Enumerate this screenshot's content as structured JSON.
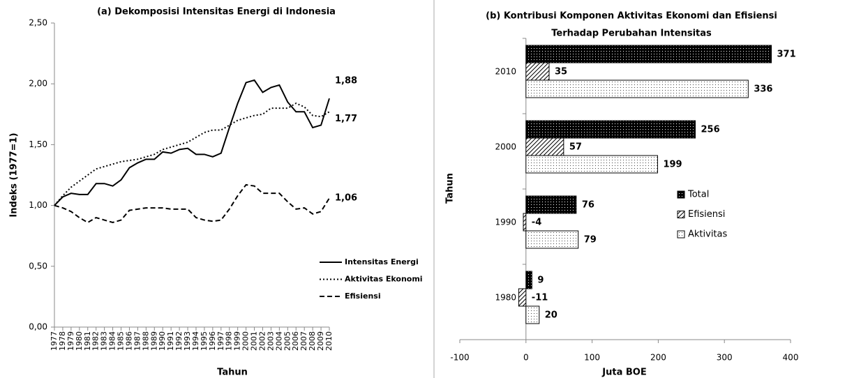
{
  "chart_data": [
    {
      "type": "line",
      "title": "(a) Dekomposisi  Intensitas Energi di Indonesia",
      "x_label": "Tahun",
      "y_label": "Indeks (1977=1)",
      "categories": [
        "1977",
        "1978",
        "1979",
        "1980",
        "1981",
        "1982",
        "1983",
        "1984",
        "1985",
        "1986",
        "1987",
        "1988",
        "1989",
        "1990",
        "1991",
        "1992",
        "1993",
        "1994",
        "1995",
        "1996",
        "1997",
        "1998",
        "1999",
        "2000",
        "2001",
        "2002",
        "2003",
        "2004",
        "2005",
        "2006",
        "2007",
        "2008",
        "2009",
        "2010"
      ],
      "ylim": [
        0,
        2.5
      ],
      "yticks": [
        {
          "value": 0,
          "label": "0,00"
        },
        {
          "value": 0.5,
          "label": "0,50"
        },
        {
          "value": 1,
          "label": "1,00"
        },
        {
          "value": 1.5,
          "label": "1,50"
        },
        {
          "value": 2,
          "label": "2,00"
        },
        {
          "value": 2.5,
          "label": "2,50"
        }
      ],
      "grid": false,
      "legend": "lower-right",
      "series": [
        {
          "name": "Intensitas Energi",
          "color": "#000000",
          "dash": "solid",
          "values": [
            1.0,
            1.07,
            1.1,
            1.09,
            1.09,
            1.18,
            1.18,
            1.16,
            1.21,
            1.31,
            1.35,
            1.38,
            1.38,
            1.44,
            1.43,
            1.46,
            1.47,
            1.42,
            1.42,
            1.4,
            1.43,
            1.64,
            1.84,
            2.01,
            2.03,
            1.93,
            1.97,
            1.99,
            1.85,
            1.77,
            1.77,
            1.64,
            1.66,
            1.88
          ],
          "value_labels": [
            null,
            null,
            null,
            null,
            null,
            null,
            null,
            null,
            null,
            null,
            null,
            null,
            null,
            null,
            null,
            null,
            null,
            null,
            null,
            null,
            null,
            null,
            null,
            null,
            null,
            null,
            null,
            null,
            null,
            null,
            null,
            null,
            null,
            "1,88"
          ]
        },
        {
          "name": "Aktivitas Ekonomi",
          "color": "#000000",
          "dash": "dotted",
          "values": [
            1.0,
            1.08,
            1.15,
            1.2,
            1.25,
            1.3,
            1.32,
            1.34,
            1.36,
            1.37,
            1.38,
            1.4,
            1.42,
            1.46,
            1.48,
            1.5,
            1.52,
            1.56,
            1.6,
            1.62,
            1.62,
            1.66,
            1.7,
            1.72,
            1.74,
            1.75,
            1.8,
            1.8,
            1.8,
            1.84,
            1.81,
            1.74,
            1.73,
            1.77
          ],
          "value_labels": [
            null,
            null,
            null,
            null,
            null,
            null,
            null,
            null,
            null,
            null,
            null,
            null,
            null,
            null,
            null,
            null,
            null,
            null,
            null,
            null,
            null,
            null,
            null,
            null,
            null,
            null,
            null,
            null,
            null,
            null,
            null,
            null,
            null,
            "1,77"
          ]
        },
        {
          "name": "Efisiensi",
          "color": "#000000",
          "dash": "dashed",
          "values": [
            1.0,
            0.98,
            0.95,
            0.9,
            0.86,
            0.9,
            0.88,
            0.86,
            0.88,
            0.96,
            0.97,
            0.98,
            0.98,
            0.98,
            0.97,
            0.97,
            0.97,
            0.9,
            0.88,
            0.87,
            0.88,
            0.97,
            1.08,
            1.17,
            1.16,
            1.1,
            1.1,
            1.1,
            1.03,
            0.97,
            0.98,
            0.93,
            0.95,
            1.06
          ],
          "value_labels": [
            null,
            null,
            null,
            null,
            null,
            null,
            null,
            null,
            null,
            null,
            null,
            null,
            null,
            null,
            null,
            null,
            null,
            null,
            null,
            null,
            null,
            null,
            null,
            null,
            null,
            null,
            null,
            null,
            null,
            null,
            null,
            null,
            null,
            "1,06"
          ]
        }
      ]
    },
    {
      "type": "bar",
      "orientation": "horizontal",
      "title": [
        "(b) Kontribusi Komponen Aktivitas Ekonomi dan Efisiensi",
        "Terhadap Perubahan Intensitas"
      ],
      "x_label": "Juta BOE",
      "y_label": "Tahun",
      "categories": [
        "1980",
        "1990",
        "2000",
        "2010"
      ],
      "xlim": [
        -100,
        400
      ],
      "xticks": [
        -100,
        0,
        100,
        200,
        300,
        400
      ],
      "grid": false,
      "legend": "right",
      "series": [
        {
          "name": "Total",
          "color": "#000000",
          "pattern": "dark-dots",
          "values": [
            9,
            76,
            256,
            371
          ]
        },
        {
          "name": "Efisiensi",
          "color": "#000000",
          "pattern": "diagonal-hatch",
          "values": [
            -11,
            -4,
            57,
            35
          ]
        },
        {
          "name": "Aktivitas",
          "color": "#000000",
          "pattern": "light-dots",
          "values": [
            20,
            79,
            199,
            336
          ]
        }
      ]
    }
  ]
}
